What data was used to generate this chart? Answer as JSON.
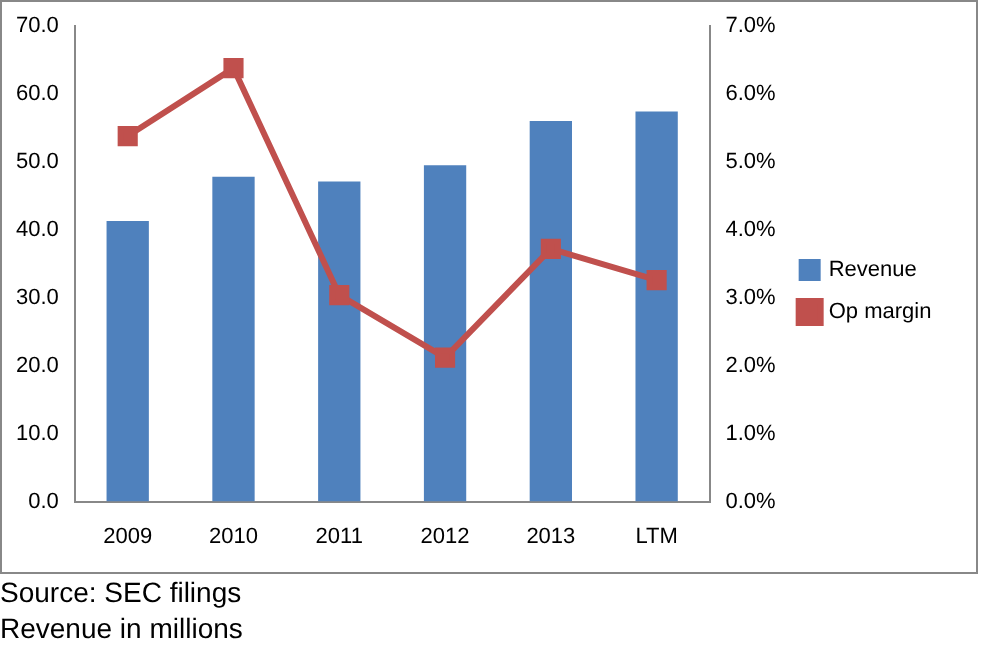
{
  "chart_data": {
    "type": "bar",
    "categories": [
      "2009",
      "2010",
      "2011",
      "2012",
      "2013",
      "LTM"
    ],
    "series": [
      {
        "name": "Revenue",
        "color": "#4f81bd",
        "values": [
          41.3,
          47.8,
          47.1,
          49.5,
          56.0,
          57.4
        ]
      },
      {
        "name": "Op margin",
        "type": "line",
        "axis": "y2",
        "color": "#c0504d",
        "values": [
          5.38,
          6.38,
          3.04,
          2.12,
          3.72,
          3.26
        ]
      }
    ],
    "ylim": [
      0,
      70
    ],
    "yticks": [
      {
        "value": 0,
        "label": "0.0"
      },
      {
        "value": 10,
        "label": "10.0"
      },
      {
        "value": 20,
        "label": "20.0"
      },
      {
        "value": 30,
        "label": "30.0"
      },
      {
        "value": 40,
        "label": "40.0"
      },
      {
        "value": 50,
        "label": "50.0"
      },
      {
        "value": 60,
        "label": "60.0"
      },
      {
        "value": 70,
        "label": "70.0"
      }
    ],
    "y2lim": [
      0,
      7
    ],
    "y2ticks": [
      {
        "value": 0,
        "label": "0.0%"
      },
      {
        "value": 1,
        "label": "1.0%"
      },
      {
        "value": 2,
        "label": "2.0%"
      },
      {
        "value": 3,
        "label": "3.0%"
      },
      {
        "value": 4,
        "label": "4.0%"
      },
      {
        "value": 5,
        "label": "5.0%"
      },
      {
        "value": 6,
        "label": "6.0%"
      },
      {
        "value": 7,
        "label": "7.0%"
      }
    ],
    "marker": "square",
    "grid": false,
    "legend": "right",
    "annotations": [
      "Source: SEC filings",
      "Revenue in millions"
    ]
  }
}
